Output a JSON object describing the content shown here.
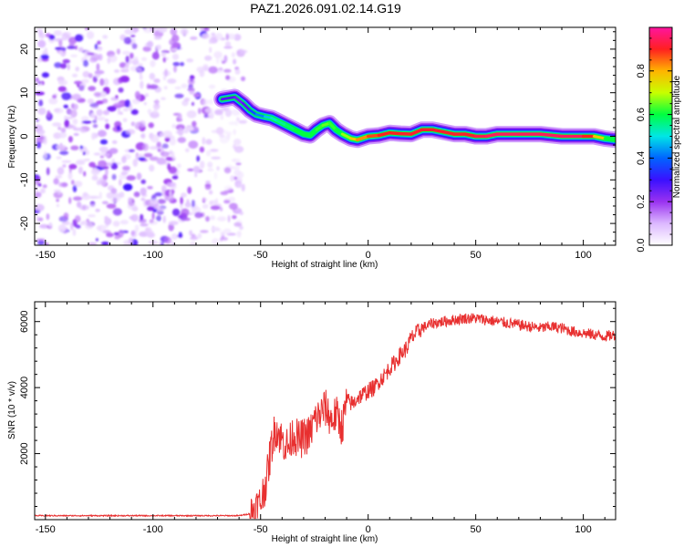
{
  "title": "PAZ1.2026.091.02.14.G19",
  "chart_data": [
    {
      "type": "heatmap",
      "title": "",
      "xlabel": "Height of straight line (km)",
      "ylabel": "Frequency (Hz)",
      "xlim": [
        -155,
        115
      ],
      "ylim": [
        -25,
        25
      ],
      "x_ticks": [
        "-150",
        "-100",
        "-50",
        "0",
        "50",
        "100"
      ],
      "x_tick_values": [
        -150,
        -100,
        -50,
        0,
        50,
        100
      ],
      "y_ticks": [
        "20",
        "10",
        "0",
        "-10",
        "-20"
      ],
      "y_tick_values": [
        20,
        10,
        0,
        -10,
        -20
      ],
      "colorbar": {
        "label": "Normalized spectral amplitude",
        "range": [
          0,
          1
        ],
        "ticks": [
          "0.0",
          "0.2",
          "0.4",
          "0.6",
          "0.8"
        ],
        "tick_values": [
          0,
          0.2,
          0.4,
          0.6,
          0.8
        ],
        "colormap": [
          "#ffffff",
          "#dcb8ff",
          "#9a32f0",
          "#3a10ff",
          "#0064ff",
          "#00e6e6",
          "#00ff40",
          "#c8ff00",
          "#ffb400",
          "#ff2020",
          "#ff14a0"
        ]
      },
      "noise_region": {
        "x_range": [
          -155,
          -58
        ],
        "freq_range": [
          -25,
          25
        ],
        "amplitude_range": [
          0.05,
          0.3
        ]
      },
      "ridge": {
        "x": [
          -68,
          -62,
          -58,
          -55,
          -52,
          -48,
          -45,
          -42,
          -38,
          -34,
          -30,
          -27,
          -24,
          -21,
          -18,
          -15,
          -12,
          -8,
          -5,
          0,
          5,
          10,
          15,
          20,
          25,
          30,
          35,
          40,
          45,
          50,
          55,
          60,
          70,
          80,
          90,
          100,
          105,
          110,
          115
        ],
        "freq": [
          8.5,
          9,
          7.5,
          6,
          5,
          4.5,
          4.2,
          3.5,
          2.5,
          1.5,
          0.5,
          0.2,
          1.5,
          2.5,
          3,
          1.5,
          0.5,
          -0.5,
          -0.8,
          0,
          0.2,
          0.8,
          0.6,
          0.5,
          1.5,
          1.5,
          1,
          0.5,
          0.5,
          0,
          0,
          0.5,
          0.5,
          0.5,
          0,
          0,
          0,
          -0.5,
          -0.8
        ],
        "amplitude": [
          0.25,
          0.3,
          0.2,
          0.35,
          0.4,
          0.45,
          0.5,
          0.55,
          0.55,
          0.6,
          0.6,
          0.6,
          0.6,
          0.65,
          0.65,
          0.6,
          0.6,
          0.75,
          0.8,
          0.85,
          0.9,
          0.9,
          0.9,
          0.92,
          0.9,
          0.92,
          0.9,
          0.92,
          0.9,
          0.92,
          0.95,
          0.95,
          0.95,
          0.95,
          0.95,
          0.95,
          0.85,
          0.7,
          0.5
        ]
      }
    },
    {
      "type": "line",
      "title": "",
      "xlabel": "Height of straight line (km)",
      "ylabel": "SNR (10 * v/v)",
      "xlim": [
        -155,
        115
      ],
      "ylim": [
        0,
        6600
      ],
      "x_ticks": [
        "-150",
        "-100",
        "-50",
        "0",
        "50",
        "100"
      ],
      "x_tick_values": [
        -150,
        -100,
        -50,
        0,
        50,
        100
      ],
      "y_ticks": [
        "2000",
        "4000",
        "6000"
      ],
      "y_tick_values": [
        2000,
        4000,
        6000
      ],
      "series": [
        {
          "name": "SNR",
          "color": "#e83030",
          "x": [
            -155,
            -60,
            -55,
            -50,
            -47,
            -45,
            -43,
            -40,
            -37,
            -35,
            -32,
            -30,
            -27,
            -25,
            -22,
            -20,
            -17,
            -15,
            -12,
            -10,
            -7,
            -5,
            -2,
            0,
            3,
            5,
            8,
            10,
            13,
            15,
            18,
            20,
            25,
            30,
            35,
            40,
            45,
            50,
            55,
            60,
            65,
            70,
            75,
            80,
            85,
            90,
            95,
            100,
            105,
            110,
            115
          ],
          "values": [
            120,
            120,
            180,
            500,
            1300,
            2200,
            2800,
            2400,
            2200,
            2600,
            2400,
            2500,
            2600,
            3000,
            3200,
            3400,
            3000,
            3200,
            2800,
            3600,
            3500,
            3700,
            3800,
            3900,
            4000,
            4200,
            4400,
            4600,
            4800,
            5000,
            5200,
            5500,
            5800,
            5950,
            6000,
            6050,
            6100,
            6100,
            6050,
            6000,
            5950,
            5900,
            5850,
            5800,
            5850,
            5800,
            5700,
            5650,
            5600,
            5550,
            5600
          ]
        }
      ]
    }
  ]
}
